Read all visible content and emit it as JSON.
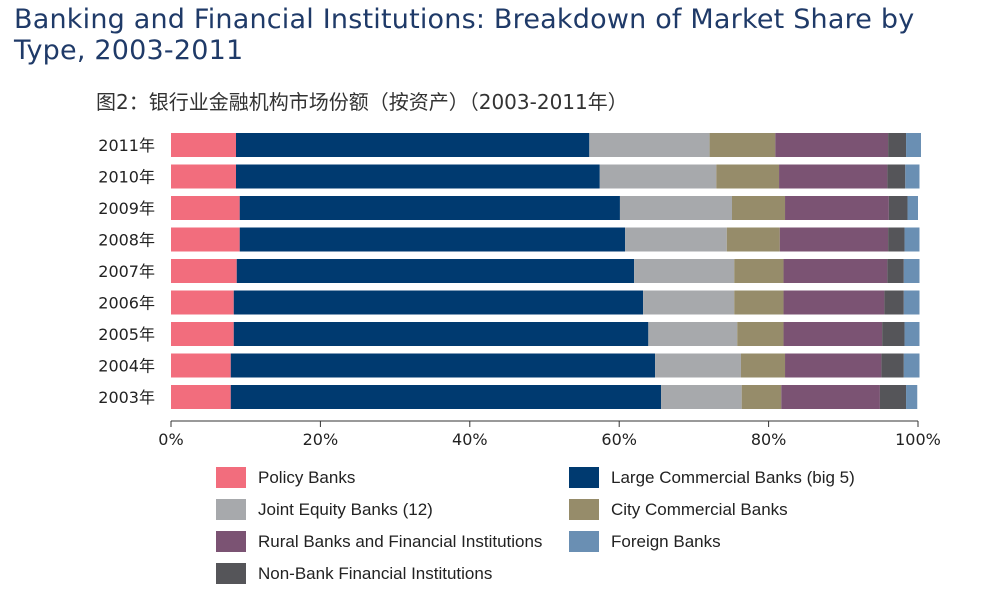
{
  "title": "Banking and Financial Institutions: Breakdown of Market Share by Type, 2003-2011",
  "subtitle": "图2：银行业金融机构市场份额（按资产）（2003-2011年）",
  "chart_data": {
    "type": "bar",
    "orientation": "horizontal",
    "stacked": true,
    "categories": [
      "2011年",
      "2010年",
      "2009年",
      "2008年",
      "2007年",
      "2006年",
      "2005年",
      "2004年",
      "2003年"
    ],
    "xlim": [
      0,
      100
    ],
    "xticks": [
      "0%",
      "20%",
      "40%",
      "60%",
      "80%",
      "100%"
    ],
    "xtick_values": [
      0,
      20,
      40,
      60,
      80,
      100
    ],
    "legend_position": "bottom",
    "series": [
      {
        "name": "Policy Banks",
        "color": "#f26d7d",
        "values": [
          8.7,
          8.7,
          9.2,
          9.2,
          8.8,
          8.4,
          8.4,
          8.0,
          8.0
        ]
      },
      {
        "name": "Large Commercial Banks (big 5)",
        "color": "#003a70",
        "values": [
          47.3,
          48.7,
          50.9,
          51.6,
          53.2,
          54.8,
          55.5,
          56.8,
          57.6
        ]
      },
      {
        "name": "Joint Equity Banks (12)",
        "color": "#a7a9ac",
        "values": [
          16.1,
          15.6,
          15.0,
          13.6,
          13.4,
          12.2,
          11.9,
          11.5,
          10.8
        ]
      },
      {
        "name": "City Commercial Banks",
        "color": "#968c6a",
        "values": [
          8.8,
          8.4,
          7.1,
          7.1,
          6.6,
          6.6,
          6.2,
          5.9,
          5.3
        ]
      },
      {
        "name": "Rural Banks and Financial Institutions",
        "color": "#7b5373",
        "values": [
          15.1,
          14.5,
          13.9,
          14.5,
          13.9,
          13.5,
          13.2,
          12.9,
          13.2
        ]
      },
      {
        "name": "Non-Bank Financial Institutions",
        "color": "#555559",
        "values": [
          2.4,
          2.4,
          2.5,
          2.2,
          2.2,
          2.6,
          3.0,
          3.0,
          3.5
        ]
      },
      {
        "name": "Foreign Banks",
        "color": "#6a8fb3",
        "values": [
          2.0,
          1.9,
          1.4,
          2.0,
          2.1,
          2.1,
          2.0,
          2.1,
          1.5
        ]
      }
    ]
  },
  "legend": {
    "items": [
      {
        "label": "Policy Banks",
        "color": "#f26d7d"
      },
      {
        "label": "Large Commercial Banks (big 5)",
        "color": "#003a70"
      },
      {
        "label": "Joint Equity Banks (12)",
        "color": "#a7a9ac"
      },
      {
        "label": "City Commercial Banks",
        "color": "#968c6a"
      },
      {
        "label": "Rural Banks and Financial Institutions",
        "color": "#7b5373"
      },
      {
        "label": "Foreign Banks",
        "color": "#6a8fb3"
      },
      {
        "label": "Non-Bank Financial Institutions",
        "color": "#555559"
      }
    ]
  }
}
